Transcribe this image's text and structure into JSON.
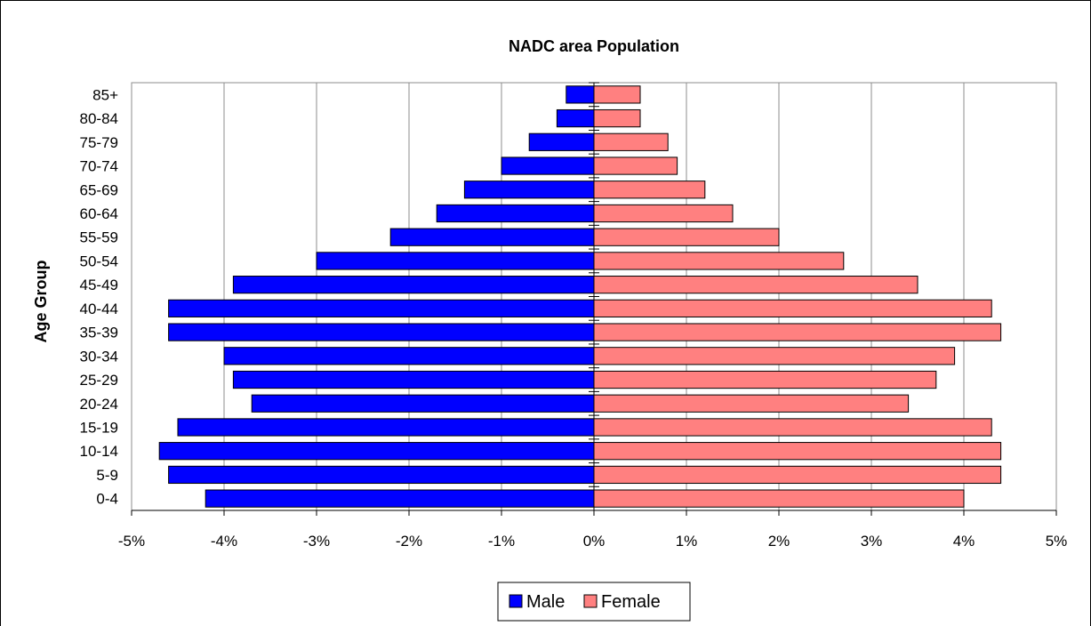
{
  "chart_data": {
    "type": "bar",
    "orientation": "horizontal",
    "title": "NADC area Population",
    "ylabel": "Age Group",
    "xlabel": "",
    "categories": [
      "0-4",
      "5-9",
      "10-14",
      "15-19",
      "20-24",
      "25-29",
      "30-34",
      "35-39",
      "40-44",
      "45-49",
      "50-54",
      "55-59",
      "60-64",
      "65-69",
      "70-74",
      "75-79",
      "80-84",
      "85+"
    ],
    "series": [
      {
        "name": "Male",
        "color": "#0000ff",
        "values": [
          -4.2,
          -4.6,
          -4.7,
          -4.5,
          -3.7,
          -3.9,
          -4.0,
          -4.6,
          -4.6,
          -3.9,
          -3.0,
          -2.2,
          -1.7,
          -1.4,
          -1.0,
          -0.7,
          -0.4,
          -0.3
        ]
      },
      {
        "name": "Female",
        "color": "#ff8080",
        "values": [
          4.0,
          4.4,
          4.4,
          4.3,
          3.4,
          3.7,
          3.9,
          4.4,
          4.3,
          3.5,
          2.7,
          2.0,
          1.5,
          1.2,
          0.9,
          0.8,
          0.5,
          0.5
        ]
      }
    ],
    "xlim": [
      -5,
      5
    ],
    "xticks": [
      -5,
      -4,
      -3,
      -2,
      -1,
      0,
      1,
      2,
      3,
      4,
      5
    ],
    "xtick_labels": [
      "-5%",
      "-4%",
      "-3%",
      "-2%",
      "-1%",
      "0%",
      "1%",
      "2%",
      "3%",
      "4%",
      "5%"
    ],
    "grid": "vertical",
    "legend_position": "bottom"
  }
}
